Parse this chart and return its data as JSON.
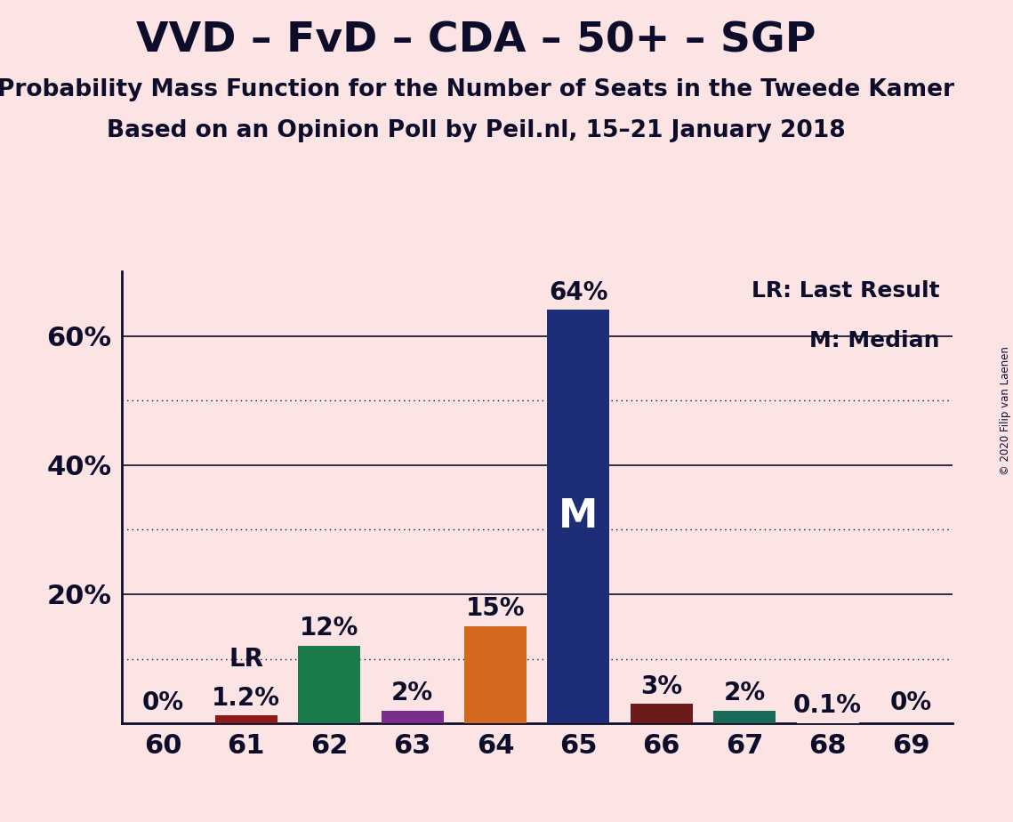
{
  "title": "VVD – FvD – CDA – 50+ – SGP",
  "subtitle1": "Probability Mass Function for the Number of Seats in the Tweede Kamer",
  "subtitle2": "Based on an Opinion Poll by Peil.nl, 15–21 January 2018",
  "copyright": "© 2020 Filip van Laenen",
  "background_color": "#fce4e4",
  "categories": [
    60,
    61,
    62,
    63,
    64,
    65,
    66,
    67,
    68,
    69
  ],
  "values": [
    0.0,
    1.2,
    12.0,
    2.0,
    15.0,
    64.0,
    3.0,
    2.0,
    0.1,
    0.0
  ],
  "bar_colors": [
    "#fce4e4",
    "#8b1a1a",
    "#1a7a4a",
    "#7b2d8b",
    "#d2691e",
    "#1e2d78",
    "#6b1a1a",
    "#1a6b5a",
    "#fce4e4",
    "#fce4e4"
  ],
  "labels": [
    "0%",
    "1.2%",
    "12%",
    "2%",
    "15%",
    "64%",
    "3%",
    "2%",
    "0.1%",
    "0%"
  ],
  "median_bar_idx": 5,
  "lr_bar_idx": 1,
  "lr_value": 1.2,
  "ylim": [
    0,
    70
  ],
  "solid_yticks": [
    20,
    40,
    60
  ],
  "dotted_yticks": [
    10,
    30,
    50
  ],
  "ytick_labels_vals": [
    20,
    40,
    60
  ],
  "legend_line1": "LR: Last Result",
  "legend_line2": "M: Median",
  "axis_color": "#0d0d2b",
  "text_color": "#0d0d2b",
  "title_fontsize": 34,
  "subtitle_fontsize": 19,
  "tick_fontsize": 22,
  "label_fontsize": 20,
  "legend_fontsize": 18,
  "m_fontsize": 32
}
